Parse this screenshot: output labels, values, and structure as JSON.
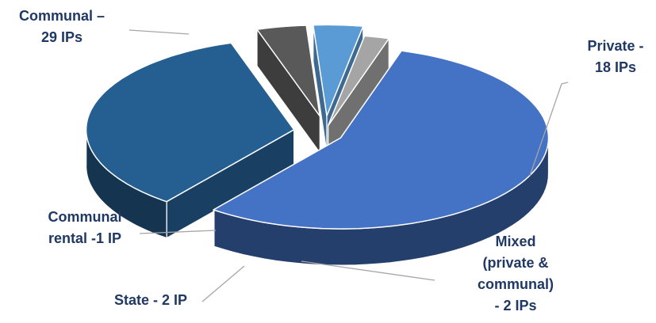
{
  "chart_data": {
    "type": "pie",
    "style": "3d-exploded",
    "categories": [
      "Communal",
      "Private",
      "Mixed (private & communal)",
      "State",
      "Communal rental"
    ],
    "values": [
      29,
      18,
      2,
      2,
      1
    ],
    "unit": "IPs",
    "labels": [
      [
        "Communal –",
        "29 IPs"
      ],
      [
        "Private -",
        "18 IPs"
      ],
      [
        "Mixed",
        "(private &",
        "communal)",
        "- 2 IPs"
      ],
      [
        "State - 2 IP"
      ],
      [
        "Communal",
        "rental -1 IP"
      ]
    ],
    "colors": [
      "#4472C4",
      "#255E91",
      "#595959",
      "#5B9BD5",
      "#A5A5A5"
    ],
    "label_color": "#1F3864",
    "legend": "none"
  }
}
